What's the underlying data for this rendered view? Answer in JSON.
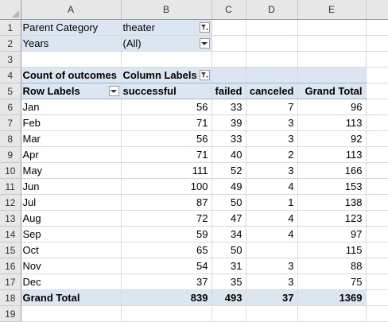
{
  "columns": [
    "A",
    "B",
    "C",
    "D",
    "E"
  ],
  "rows": [
    "1",
    "2",
    "3",
    "4",
    "5",
    "6",
    "7",
    "8",
    "9",
    "10",
    "11",
    "12",
    "13",
    "14",
    "15",
    "16",
    "17",
    "18",
    "19"
  ],
  "filters": [
    {
      "label": "Parent Category",
      "value": "theater",
      "icon": "filter-applied-icon"
    },
    {
      "label": "Years",
      "value": "(All)",
      "icon": "chevron-down-icon"
    }
  ],
  "pivot": {
    "values_label": "Count of outcomes",
    "column_labels": "Column Labels",
    "row_labels": "Row Labels",
    "headers": [
      "successful",
      "failed",
      "canceled",
      "Grand Total"
    ],
    "rows": [
      {
        "label": "Jan",
        "successful": "56",
        "failed": "33",
        "canceled": "7",
        "total": "96"
      },
      {
        "label": "Feb",
        "successful": "71",
        "failed": "39",
        "canceled": "3",
        "total": "113"
      },
      {
        "label": "Mar",
        "successful": "56",
        "failed": "33",
        "canceled": "3",
        "total": "92"
      },
      {
        "label": "Apr",
        "successful": "71",
        "failed": "40",
        "canceled": "2",
        "total": "113"
      },
      {
        "label": "May",
        "successful": "111",
        "failed": "52",
        "canceled": "3",
        "total": "166"
      },
      {
        "label": "Jun",
        "successful": "100",
        "failed": "49",
        "canceled": "4",
        "total": "153"
      },
      {
        "label": "Jul",
        "successful": "87",
        "failed": "50",
        "canceled": "1",
        "total": "138"
      },
      {
        "label": "Aug",
        "successful": "72",
        "failed": "47",
        "canceled": "4",
        "total": "123"
      },
      {
        "label": "Sep",
        "successful": "59",
        "failed": "34",
        "canceled": "4",
        "total": "97"
      },
      {
        "label": "Oct",
        "successful": "65",
        "failed": "50",
        "canceled": "",
        "total": "115"
      },
      {
        "label": "Nov",
        "successful": "54",
        "failed": "31",
        "canceled": "3",
        "total": "88"
      },
      {
        "label": "Dec",
        "successful": "37",
        "failed": "35",
        "canceled": "3",
        "total": "75"
      }
    ],
    "grand_total": {
      "label": "Grand Total",
      "successful": "839",
      "failed": "493",
      "canceled": "37",
      "total": "1369"
    }
  }
}
